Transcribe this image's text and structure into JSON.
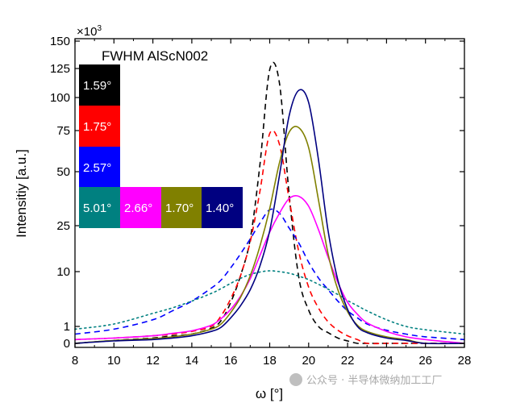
{
  "chart_data": {
    "type": "line",
    "title": "FWHM AlScN002",
    "xlabel": "ω [°]",
    "ylabel": "Intensitiy [a.u.]",
    "multiplier_label": "×10",
    "multiplier_exponent": "3",
    "xlim": [
      8,
      28
    ],
    "x_ticks": [
      8,
      10,
      12,
      14,
      16,
      18,
      20,
      22,
      24,
      26,
      28
    ],
    "y_ticks": [
      0,
      1,
      10,
      25,
      50,
      75,
      100,
      125,
      150
    ],
    "y_scale": "sqrt-like (values in thousands)",
    "x": [
      8,
      10,
      12,
      13,
      14,
      15,
      15.5,
      16,
      16.5,
      17,
      17.5,
      18,
      18.5,
      19,
      19.5,
      20,
      20.5,
      21,
      21.5,
      22,
      22.5,
      23,
      24,
      25,
      26,
      28
    ],
    "series": [
      {
        "name": "1.59°",
        "color": "#000000",
        "style": "dashed",
        "values": [
          0,
          0.03,
          0.1,
          0.2,
          0.3,
          0.8,
          1.5,
          3.8,
          9.0,
          20.0,
          54.0,
          124.0,
          112.0,
          38.0,
          8.5,
          2.7,
          1.0,
          0.4,
          0.1,
          0.02,
          0,
          0,
          0,
          0,
          0,
          0
        ]
      },
      {
        "name": "1.75°",
        "color": "#ff0000",
        "style": "dashed",
        "values": [
          0.05,
          0.1,
          0.2,
          0.3,
          0.5,
          1.0,
          2.0,
          4.4,
          9.0,
          19.0,
          40.0,
          73.0,
          66.0,
          36.0,
          15.5,
          6.5,
          3.0,
          1.4,
          0.6,
          0.2,
          0.05,
          0,
          0,
          0,
          0,
          0
        ]
      },
      {
        "name": "2.57°",
        "color": "#0000ff",
        "style": "dashed",
        "values": [
          0.3,
          0.7,
          1.6,
          2.6,
          4.0,
          6.3,
          8.0,
          11.0,
          15.0,
          20.0,
          26.0,
          31.5,
          30.0,
          24.0,
          18.5,
          12.5,
          8.5,
          6.0,
          4.0,
          2.6,
          1.8,
          1.2,
          0.6,
          0.3,
          0.15,
          0.05
        ]
      },
      {
        "name": "5.01°",
        "color": "#008080",
        "style": "dotted",
        "values": [
          0.7,
          1.2,
          2.3,
          3.0,
          4.0,
          5.3,
          6.2,
          7.3,
          8.4,
          9.3,
          9.9,
          10.2,
          10.0,
          9.6,
          8.9,
          8.1,
          7.1,
          6.1,
          5.1,
          4.1,
          3.3,
          2.6,
          1.6,
          1.0,
          0.65,
          0.3
        ]
      },
      {
        "name": "2.66°",
        "color": "#ff00ff",
        "style": "solid",
        "values": [
          0.05,
          0.1,
          0.2,
          0.35,
          0.55,
          1.1,
          1.7,
          2.8,
          4.8,
          8.3,
          14.5,
          22.5,
          30.0,
          36.5,
          37.5,
          33.0,
          23.5,
          14.0,
          7.5,
          3.8,
          2.2,
          1.3,
          0.5,
          0.15,
          0.05,
          0
        ]
      },
      {
        "name": "1.70°",
        "color": "#808000",
        "style": "solid",
        "values": [
          0,
          0.03,
          0.08,
          0.15,
          0.3,
          0.7,
          1.2,
          2.4,
          4.6,
          9.0,
          17.5,
          32.0,
          55.0,
          74.0,
          77.0,
          64.0,
          36.0,
          15.0,
          6.0,
          2.5,
          1.1,
          0.5,
          0.15,
          0.05,
          0,
          0
        ]
      },
      {
        "name": "1.40°",
        "color": "#000080",
        "style": "solid",
        "values": [
          0,
          0.02,
          0.05,
          0.1,
          0.2,
          0.5,
          0.9,
          1.8,
          3.3,
          6.0,
          11.5,
          23.0,
          48.0,
          86.0,
          106.0,
          96.0,
          57.0,
          23.0,
          8.0,
          2.8,
          1.0,
          0.4,
          0.1,
          0.03,
          0,
          0
        ]
      }
    ],
    "legend": {
      "placement": "top-left",
      "title": "FWHM AlScN002",
      "entries": [
        {
          "label": "1.59°",
          "color": "#000000"
        },
        {
          "label": "1.75°",
          "color": "#ff0000"
        },
        {
          "label": "2.57°",
          "color": "#0000ff"
        },
        {
          "label": "5.01°",
          "color": "#008080"
        },
        {
          "label": "2.66°",
          "color": "#ff00ff"
        },
        {
          "label": "1.70°",
          "color": "#808000"
        },
        {
          "label": "1.40°",
          "color": "#000080"
        }
      ]
    }
  },
  "watermark": "公众号 · 半导体微纳加工工厂"
}
